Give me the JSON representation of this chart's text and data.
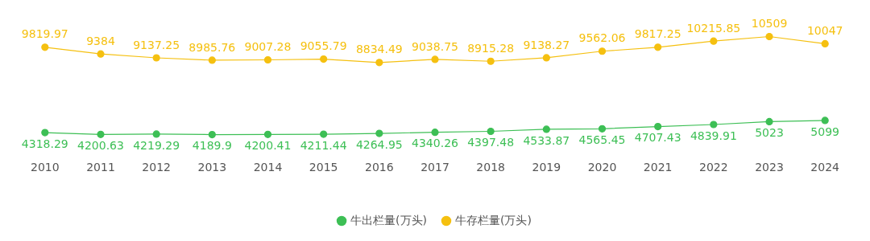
{
  "chart_data": {
    "type": "line",
    "categories": [
      "2010",
      "2011",
      "2012",
      "2013",
      "2014",
      "2015",
      "2016",
      "2017",
      "2018",
      "2019",
      "2020",
      "2021",
      "2022",
      "2023",
      "2024"
    ],
    "series": [
      {
        "name": "牛出栏量(万头)",
        "color": "#3dbf55",
        "values": [
          4318.29,
          4200.63,
          4219.29,
          4189.9,
          4200.41,
          4211.44,
          4264.95,
          4340.26,
          4397.48,
          4533.87,
          4565.45,
          4707.43,
          4839.91,
          5023,
          5099
        ]
      },
      {
        "name": "牛存栏量(万头)",
        "color": "#f5c010",
        "values": [
          9819.97,
          9384,
          9137.25,
          8985.76,
          9007.28,
          9055.79,
          8834.49,
          9038.75,
          8915.28,
          9138.27,
          9562.06,
          9817.25,
          10215.85,
          10509,
          10047
        ]
      }
    ],
    "data_labels": true,
    "legend": "bottom",
    "marker": "circle",
    "grid": false
  }
}
